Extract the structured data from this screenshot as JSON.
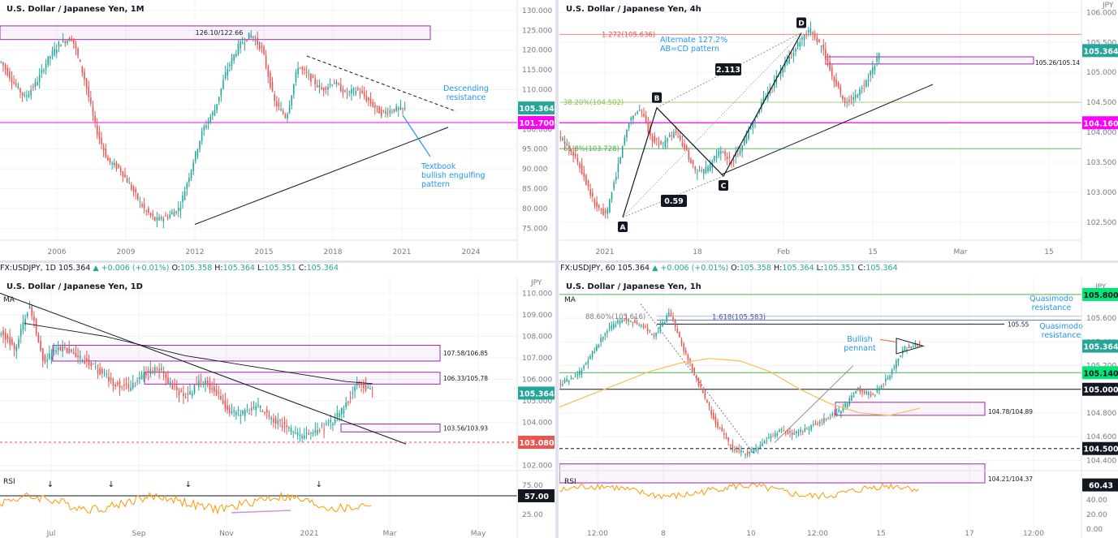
{
  "colors": {
    "up": "#26a69a",
    "down": "#ef5350",
    "grid": "#f0f3fa",
    "axis": "#787b86",
    "magenta": "#ff00ff",
    "purple": "#9c27b0",
    "blue": "#2196f3",
    "orange": "#ff9800",
    "green": "#4caf50",
    "gold": "#f7c35a"
  },
  "panels": {
    "monthly": {
      "title": "U.S. Dollar / Japanese Yen, 1M"
    },
    "h4": {
      "title": "U.S. Dollar / Japanese Yen, 4h"
    },
    "daily": {
      "title": "U.S. Dollar / Japanese Yen, 1D"
    },
    "h1": {
      "title": "U.S. Dollar / Japanese Yen, 1h"
    }
  },
  "ohlc_daily": {
    "symbol": "FX:USDJPY, 1D",
    "last": "105.364",
    "change": "▲ +0.006 (+0.01%)",
    "o": "105.358",
    "h": "105.364",
    "l": "105.351",
    "c": "105.364"
  },
  "ohlc_h1": {
    "symbol": "FX:USDJPY, 60",
    "last": "105.364",
    "change": "▲ +0.006 (+0.01%)",
    "o": "105.358",
    "h": "105.364",
    "l": "105.351",
    "c": "105.364"
  },
  "chart_data": [
    {
      "type": "candlestick",
      "panel": "monthly",
      "title": "U.S. Dollar / Japanese Yen, 1M",
      "x_ticks": [
        "2006",
        "2009",
        "2012",
        "2015",
        "2018",
        "2021",
        "2024"
      ],
      "y_ticks": [
        "130.000",
        "125.000",
        "120.000",
        "115.000",
        "110.000",
        "105.000",
        "100.000",
        "95.000",
        "90.000",
        "85.000",
        "80.000",
        "75.000"
      ],
      "ylim": [
        72,
        131
      ],
      "current_price": "105.364",
      "level_label": "101.700",
      "zone": {
        "label": "126.10/122.66",
        "from": 122.66,
        "to": 126.1
      },
      "annotations": [
        {
          "text": "Descending resistance"
        },
        {
          "text": "Textbook bullish engulfing pattern"
        }
      ]
    },
    {
      "type": "candlestick",
      "panel": "h4",
      "title": "U.S. Dollar / Japanese Yen, 4h",
      "axis_unit": "JPY",
      "x_ticks": [
        "2021",
        "18",
        "Feb",
        "15",
        "Mar",
        "15"
      ],
      "y_ticks": [
        "106.000",
        "105.500",
        "105.000",
        "104.500",
        "104.000",
        "103.500",
        "103.000",
        "102.500"
      ],
      "ylim": [
        102.2,
        106.1
      ],
      "current_price": "105.364",
      "level_label": "104.160",
      "fib_levels": [
        {
          "label": "1.272(105.636)",
          "value": 105.636
        },
        {
          "label": "38.20%(104.502)",
          "value": 104.502
        },
        {
          "label": "61.8%(103.728)",
          "value": 103.728
        }
      ],
      "zone": {
        "label": "105.26/105.14",
        "from": 105.14,
        "to": 105.26
      },
      "pattern_points": [
        "A",
        "B",
        "C",
        "D"
      ],
      "ratios": [
        "2.113",
        "0.59"
      ],
      "annotations": [
        {
          "text": "Alternate 127.2% AB=CD pattern"
        }
      ]
    },
    {
      "type": "candlestick",
      "panel": "daily",
      "title": "U.S. Dollar / Japanese Yen, 1D",
      "axis_unit": "JPY",
      "indicator_label": "MA",
      "x_ticks": [
        "Jul",
        "Sep",
        "Nov",
        "2021",
        "Mar",
        "May"
      ],
      "y_ticks": [
        "110.000",
        "109.000",
        "108.000",
        "107.000",
        "106.000",
        "105.000",
        "104.000",
        "103.000",
        "102.000"
      ],
      "ylim": [
        101.8,
        110.2
      ],
      "current_price": "105.364",
      "level_label": "103.080",
      "zones": [
        {
          "label": "107.58/106.85",
          "from": 106.85,
          "to": 107.58
        },
        {
          "label": "106.33/105.78",
          "from": 105.78,
          "to": 106.33
        },
        {
          "label": "103.56/103.93",
          "from": 103.56,
          "to": 103.93
        }
      ],
      "rsi": {
        "label": "RSI",
        "level_label": "57.00",
        "ticks": [
          "75.00",
          "50.00",
          "25.00"
        ]
      }
    },
    {
      "type": "candlestick",
      "panel": "h1",
      "title": "U.S. Dollar / Japanese Yen, 1h",
      "axis_unit": "JPY",
      "indicator_label": "MA",
      "x_ticks": [
        "12:00",
        "8",
        "10",
        "12:00",
        "15",
        "17",
        "12:00"
      ],
      "y_ticks": [
        "105.600",
        "105.400",
        "105.200",
        "104.800",
        "104.600",
        "104.400"
      ],
      "ylim": [
        104.32,
        105.82
      ],
      "current_price": "105.364",
      "levels": [
        {
          "label": "105.800",
          "value": 105.8
        },
        {
          "label": "105.140",
          "value": 105.14
        },
        {
          "label": "105.000",
          "value": 105.0
        },
        {
          "label": "104.500",
          "value": 104.5
        }
      ],
      "fib_levels": [
        {
          "label": "88.60%(105.616)",
          "value": 105.616
        },
        {
          "label": "1.618(105.583)",
          "value": 105.583
        }
      ],
      "line_label": "105.55",
      "zones": [
        {
          "label": "104.78/104.89",
          "from": 104.78,
          "to": 104.89
        },
        {
          "label": "104.21/104.37",
          "from": 104.21,
          "to": 104.37
        }
      ],
      "annotations": [
        {
          "text": "Quasimodo resistance"
        },
        {
          "text": "Quasimodo resistance"
        },
        {
          "text": "Bullish pennant"
        }
      ],
      "rsi": {
        "label": "RSI",
        "level_label": "60.43",
        "ticks": [
          "40.00",
          "20.00",
          "0.00"
        ]
      }
    }
  ]
}
